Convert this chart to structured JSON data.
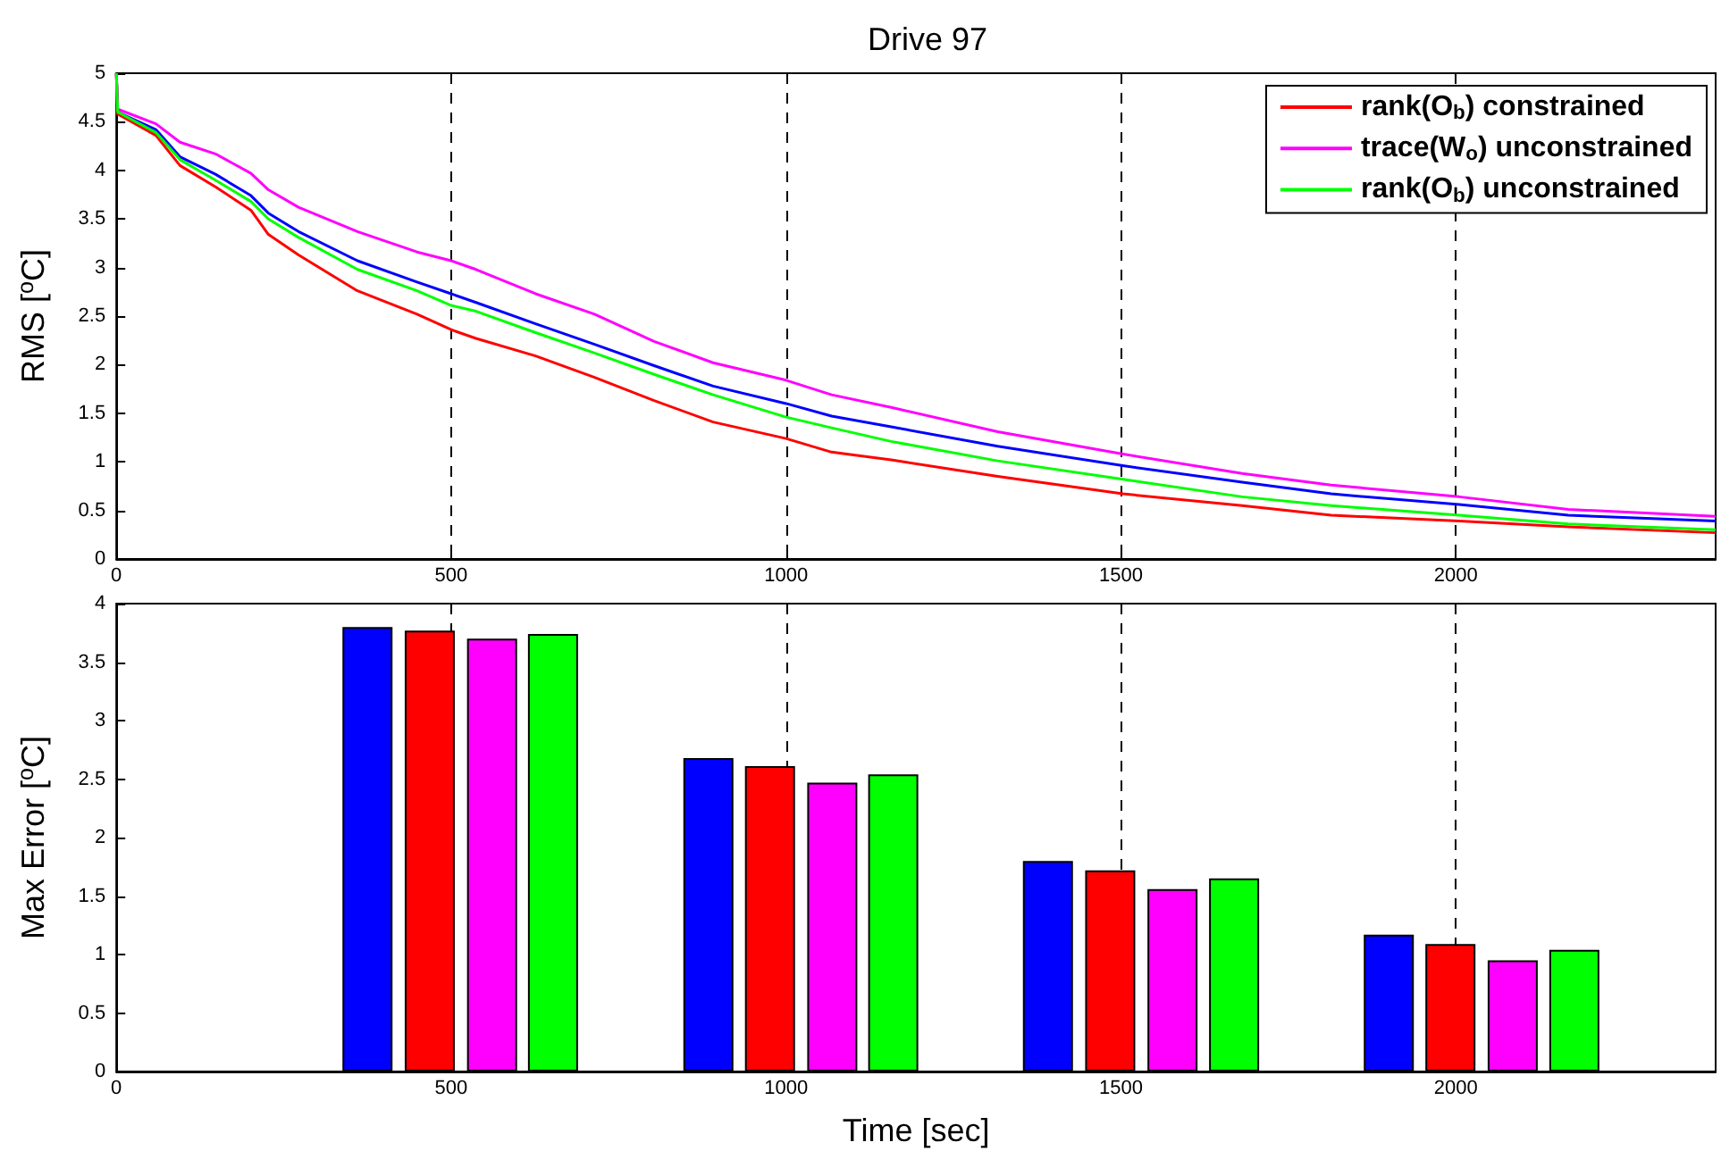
{
  "chart_data": [
    {
      "type": "line",
      "title": "Drive 97",
      "ylabel": "RMS [$^{o}$C]",
      "xlim": [
        0,
        2388
      ],
      "xticks": [
        0,
        500,
        1000,
        1500,
        2000
      ],
      "ylim": [
        0,
        5
      ],
      "yticks": [
        0,
        0.5,
        1,
        1.5,
        2,
        2.5,
        3,
        3.5,
        4,
        4.5,
        5
      ],
      "grid": "x",
      "legend": "top right",
      "x": [
        0,
        2,
        59,
        95,
        148,
        201,
        227,
        272,
        360,
        449,
        500,
        537,
        626,
        714,
        803,
        891,
        1000,
        1068,
        1157,
        1316,
        1503,
        1681,
        1814,
        2005,
        2168,
        2388
      ],
      "series": [
        {
          "color": "#0000ff",
          "values": [
            5,
            4.6,
            4.42,
            4.14,
            3.96,
            3.74,
            3.56,
            3.37,
            3.07,
            2.85,
            2.73,
            2.64,
            2.42,
            2.21,
            1.99,
            1.78,
            1.6,
            1.47,
            1.36,
            1.16,
            0.96,
            0.79,
            0.67,
            0.56,
            0.45,
            0.39
          ]
        },
        {
          "name": "rank(O$_{b}$) constrained",
          "color": "#ff0000",
          "values": [
            5,
            4.58,
            4.36,
            4.05,
            3.83,
            3.59,
            3.34,
            3.13,
            2.76,
            2.52,
            2.36,
            2.27,
            2.09,
            1.87,
            1.63,
            1.41,
            1.24,
            1.1,
            1.02,
            0.85,
            0.67,
            0.55,
            0.45,
            0.39,
            0.33,
            0.27
          ]
        },
        {
          "name": "trace(W$_{o}$) unconstrained",
          "color": "#ff00ff",
          "values": [
            5,
            4.63,
            4.48,
            4.29,
            4.17,
            3.97,
            3.8,
            3.62,
            3.37,
            3.16,
            3.07,
            2.98,
            2.73,
            2.52,
            2.24,
            2.02,
            1.84,
            1.69,
            1.56,
            1.31,
            1.08,
            0.88,
            0.76,
            0.64,
            0.51,
            0.44
          ]
        },
        {
          "name": "rank(O$_{b}$) unconstrained",
          "color": "#00ff00",
          "values": [
            5,
            4.6,
            4.39,
            4.11,
            3.9,
            3.68,
            3.5,
            3.31,
            2.98,
            2.76,
            2.61,
            2.55,
            2.33,
            2.12,
            1.9,
            1.69,
            1.46,
            1.35,
            1.21,
            1.01,
            0.82,
            0.64,
            0.55,
            0.45,
            0.36,
            0.3
          ]
        }
      ]
    },
    {
      "type": "bar",
      "xlabel": "Time [sec]",
      "ylabel": "Max Error [$^{o}$C]",
      "xlim": [
        0,
        2388
      ],
      "xticks": [
        0,
        500,
        1000,
        1500,
        2000
      ],
      "ylim": [
        0,
        4
      ],
      "yticks": [
        0,
        0.5,
        1,
        1.5,
        2,
        2.5,
        3,
        3.5,
        4
      ],
      "grid": "x",
      "series": [
        {
          "color": "#0000ff",
          "x": [
            375,
            884,
            1391,
            1900
          ],
          "values": [
            3.8,
            2.68,
            1.8,
            1.17
          ]
        },
        {
          "color": "#ff0000",
          "x": [
            468,
            976,
            1484,
            1992
          ],
          "values": [
            3.77,
            2.61,
            1.72,
            1.09
          ]
        },
        {
          "color": "#ff00ff",
          "x": [
            561,
            1069,
            1577,
            2085
          ],
          "values": [
            3.7,
            2.47,
            1.56,
            0.95
          ]
        },
        {
          "color": "#00ff00",
          "x": [
            652,
            1160,
            1669,
            2177
          ],
          "values": [
            3.74,
            2.54,
            1.65,
            1.04
          ]
        }
      ]
    }
  ]
}
